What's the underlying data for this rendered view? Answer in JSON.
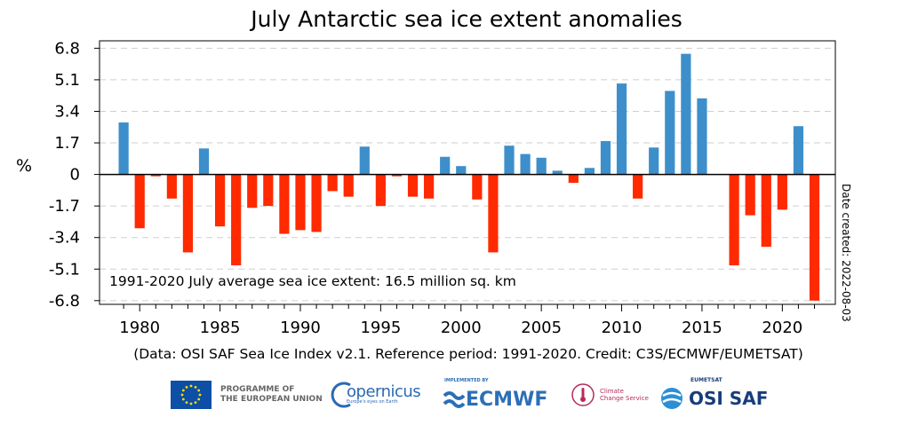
{
  "chart_data": {
    "type": "bar",
    "title": "July Antarctic sea ice extent anomalies",
    "ylabel": "%",
    "xlabel": "",
    "ylim": [
      -7.0,
      7.2
    ],
    "yticks": [
      6.8,
      5.1,
      3.4,
      1.7,
      0,
      -1.7,
      -3.4,
      -5.1,
      -6.8
    ],
    "ytick_labels": [
      "6.8",
      "5.1",
      "3.4",
      "1.7",
      "0",
      "-1.7",
      "-3.4",
      "-5.1",
      "-6.8"
    ],
    "xticks": [
      1980,
      1985,
      1990,
      1995,
      2000,
      2005,
      2010,
      2015,
      2020
    ],
    "xtick_labels": [
      "1980",
      "1985",
      "1990",
      "1995",
      "2000",
      "2005",
      "2010",
      "2015",
      "2020"
    ],
    "grid": "horizontal dashed",
    "positive_color": "#3d8fcb",
    "negative_color": "#ff2a00",
    "years": [
      1979,
      1980,
      1981,
      1982,
      1983,
      1984,
      1985,
      1986,
      1987,
      1988,
      1989,
      1990,
      1991,
      1992,
      1993,
      1994,
      1995,
      1996,
      1997,
      1998,
      1999,
      2000,
      2001,
      2002,
      2003,
      2004,
      2005,
      2006,
      2007,
      2008,
      2009,
      2010,
      2011,
      2012,
      2013,
      2014,
      2015,
      2016,
      2017,
      2018,
      2019,
      2020,
      2021,
      2022
    ],
    "values": [
      2.8,
      -2.9,
      -0.1,
      -1.3,
      -4.2,
      1.4,
      -2.8,
      -4.9,
      -1.8,
      -1.7,
      -3.2,
      -3.0,
      -3.1,
      -0.9,
      -1.2,
      1.5,
      -1.7,
      -0.1,
      -1.2,
      -1.3,
      0.95,
      0.45,
      -1.35,
      -4.2,
      1.55,
      1.1,
      0.9,
      0.2,
      -0.45,
      0.35,
      1.8,
      4.9,
      -1.3,
      1.45,
      4.5,
      6.5,
      4.1,
      0.0,
      -4.9,
      -2.2,
      -3.9,
      -1.9,
      2.6,
      -6.8
    ],
    "annotation": "1991-2020 July average sea ice extent: 16.5 million sq. km",
    "date_created": "Date created: 2022-08-03",
    "caption": "(Data: OSI SAF Sea Ice Index v2.1.  Reference period: 1991-2020.  Credit: C3S/ECMWF/EUMETSAT)"
  },
  "logos": {
    "eu_label": "PROGRAMME OF\nTHE EUROPEAN UNION",
    "copernicus": "opernicus",
    "copernicus_sub": "Europe's eyes on Earth",
    "ecmwf_sub": "IMPLEMENTED BY",
    "ecmwf": "ECMWF",
    "c3s": "Climate\nChange Service",
    "osi_sub": "EUMETSAT",
    "osi": "OSI SAF"
  },
  "colors": {
    "eu_blue": "#0d4fa6",
    "eu_star": "#ffdd00",
    "copernicus_blue": "#2a6ab3",
    "ecmwf_blue": "#2c6fb7",
    "c3s_red": "#b52c5c",
    "osi_navy": "#173d7a"
  }
}
